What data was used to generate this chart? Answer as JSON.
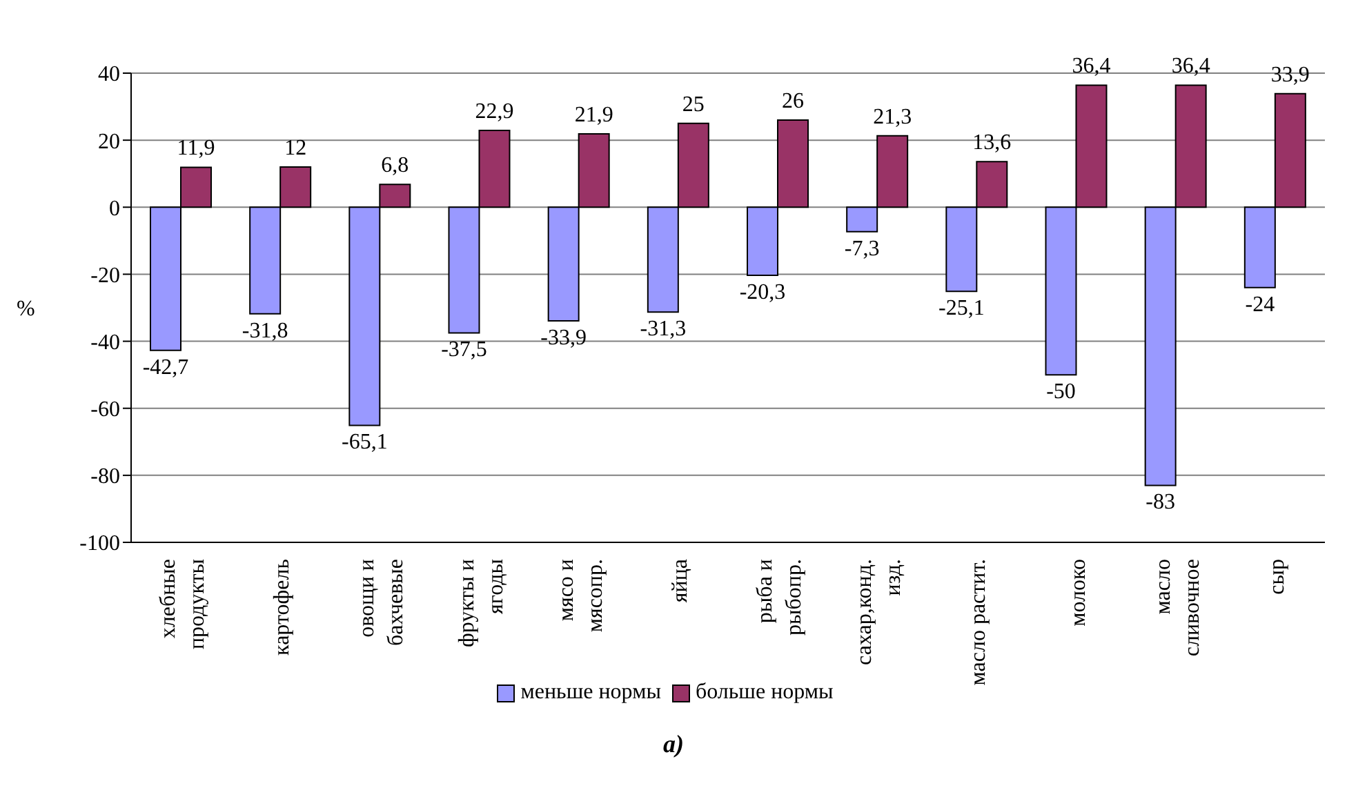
{
  "chart_data": {
    "type": "bar",
    "ylabel": "%",
    "annotations": [
      "а)"
    ],
    "categories": [
      "хлебные продукты",
      "картофель",
      "овощи и бахчевые",
      "фрукты и ягоды",
      "мясо и мясопр.",
      "яйца",
      "рыба и рыбопр.",
      "сахар,конд. изд.",
      "масло растит.",
      "молоко",
      "масло сливочное",
      "сыр"
    ],
    "series": [
      {
        "name": "меньше нормы",
        "color": "#9999ff",
        "values": [
          -42.7,
          -31.8,
          -65.1,
          -37.5,
          -33.9,
          -31.3,
          -20.3,
          -7.3,
          -25.1,
          -50,
          -83,
          -24
        ],
        "value_labels": [
          "-42,7",
          "-31,8",
          "-65,1",
          "-37,5",
          "-33,9",
          "-31,3",
          "-20,3",
          "-7,3",
          "-25,1",
          "-50",
          "-83",
          "-24"
        ]
      },
      {
        "name": "больше нормы",
        "color": "#993366",
        "values": [
          11.9,
          12,
          6.8,
          22.9,
          21.9,
          25,
          26,
          21.3,
          13.6,
          36.4,
          36.4,
          33.9
        ],
        "value_labels": [
          "11,9",
          "12",
          "6,8",
          "22,9",
          "21,9",
          "25",
          "26",
          "21,3",
          "13,6",
          "36,4",
          "36,4",
          "33,9"
        ]
      }
    ],
    "ylim": [
      -100,
      40
    ],
    "yticks": [
      -100,
      -80,
      -60,
      -40,
      -20,
      0,
      20,
      40
    ],
    "grid": "y",
    "legend": "bottom"
  }
}
